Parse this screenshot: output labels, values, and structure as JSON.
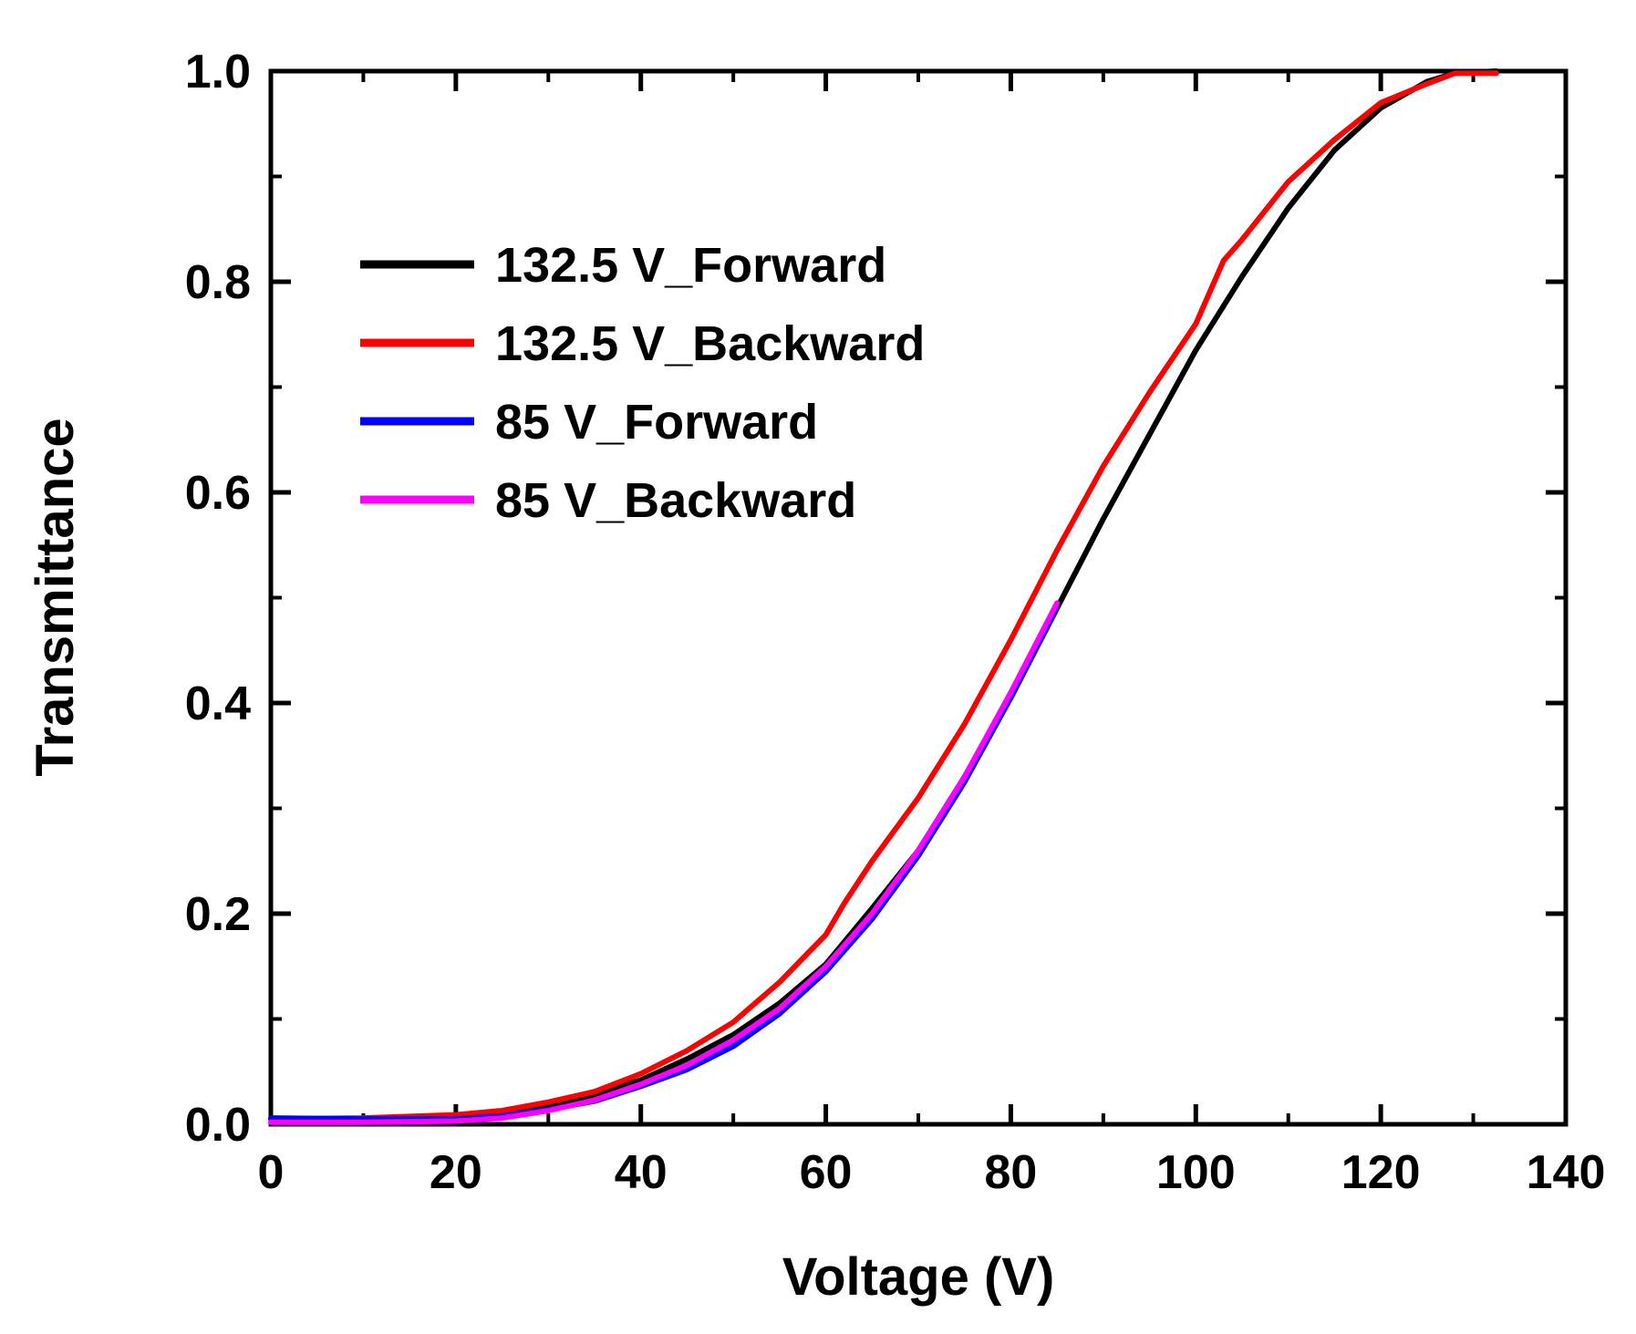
{
  "chart_data": {
    "type": "line",
    "title": "",
    "xlabel": "Voltage (V)",
    "ylabel": "Transmittance",
    "xlim": [
      0,
      140
    ],
    "ylim": [
      0.0,
      1.0
    ],
    "x_ticks": [
      0,
      20,
      40,
      60,
      80,
      100,
      120,
      140
    ],
    "x_tick_labels": [
      "0",
      "20",
      "40",
      "60",
      "80",
      "100",
      "120",
      "140"
    ],
    "y_ticks": [
      0.0,
      0.2,
      0.4,
      0.6,
      0.8,
      1.0
    ],
    "y_tick_labels": [
      "0.0",
      "0.2",
      "0.4",
      "0.6",
      "0.8",
      "1.0"
    ],
    "grid": false,
    "legend_position": "top-left",
    "series": [
      {
        "name": "132.5 V_Forward",
        "color": "#000000",
        "x": [
          0,
          10,
          20,
          25,
          30,
          35,
          40,
          45,
          50,
          55,
          60,
          65,
          70,
          75,
          80,
          85,
          90,
          95,
          100,
          105,
          110,
          115,
          120,
          125,
          128,
          132.5
        ],
        "y": [
          0.005,
          0.005,
          0.008,
          0.012,
          0.018,
          0.028,
          0.042,
          0.062,
          0.085,
          0.115,
          0.152,
          0.205,
          0.26,
          0.33,
          0.405,
          0.49,
          0.575,
          0.655,
          0.735,
          0.805,
          0.87,
          0.925,
          0.965,
          0.99,
          0.998,
          1.0
        ]
      },
      {
        "name": "132.5 V_Backward",
        "color": "#ff0000",
        "x": [
          0,
          10,
          20,
          25,
          30,
          35,
          40,
          45,
          50,
          55,
          60,
          62,
          65,
          70,
          75,
          80,
          85,
          90,
          95,
          100,
          103,
          105,
          110,
          115,
          120,
          125,
          128,
          132.5
        ],
        "y": [
          0.005,
          0.006,
          0.009,
          0.013,
          0.021,
          0.031,
          0.048,
          0.07,
          0.097,
          0.135,
          0.18,
          0.21,
          0.25,
          0.31,
          0.38,
          0.46,
          0.545,
          0.625,
          0.695,
          0.76,
          0.82,
          0.84,
          0.895,
          0.935,
          0.97,
          0.988,
          0.998,
          0.998
        ]
      },
      {
        "name": "85 V_Forward",
        "color": "#0000ff",
        "x": [
          0,
          10,
          20,
          25,
          30,
          35,
          40,
          45,
          50,
          55,
          60,
          65,
          70,
          75,
          80,
          85
        ],
        "y": [
          0.006,
          0.005,
          0.005,
          0.008,
          0.014,
          0.022,
          0.036,
          0.052,
          0.074,
          0.105,
          0.145,
          0.195,
          0.255,
          0.325,
          0.405,
          0.49
        ]
      },
      {
        "name": "85 V_Backward",
        "color": "#ff00ff",
        "x": [
          0,
          10,
          20,
          25,
          30,
          35,
          40,
          45,
          50,
          55,
          60,
          65,
          70,
          75,
          80,
          85
        ],
        "y": [
          0.002,
          0.002,
          0.003,
          0.006,
          0.013,
          0.023,
          0.038,
          0.056,
          0.08,
          0.11,
          0.15,
          0.2,
          0.26,
          0.33,
          0.41,
          0.495
        ]
      }
    ]
  }
}
